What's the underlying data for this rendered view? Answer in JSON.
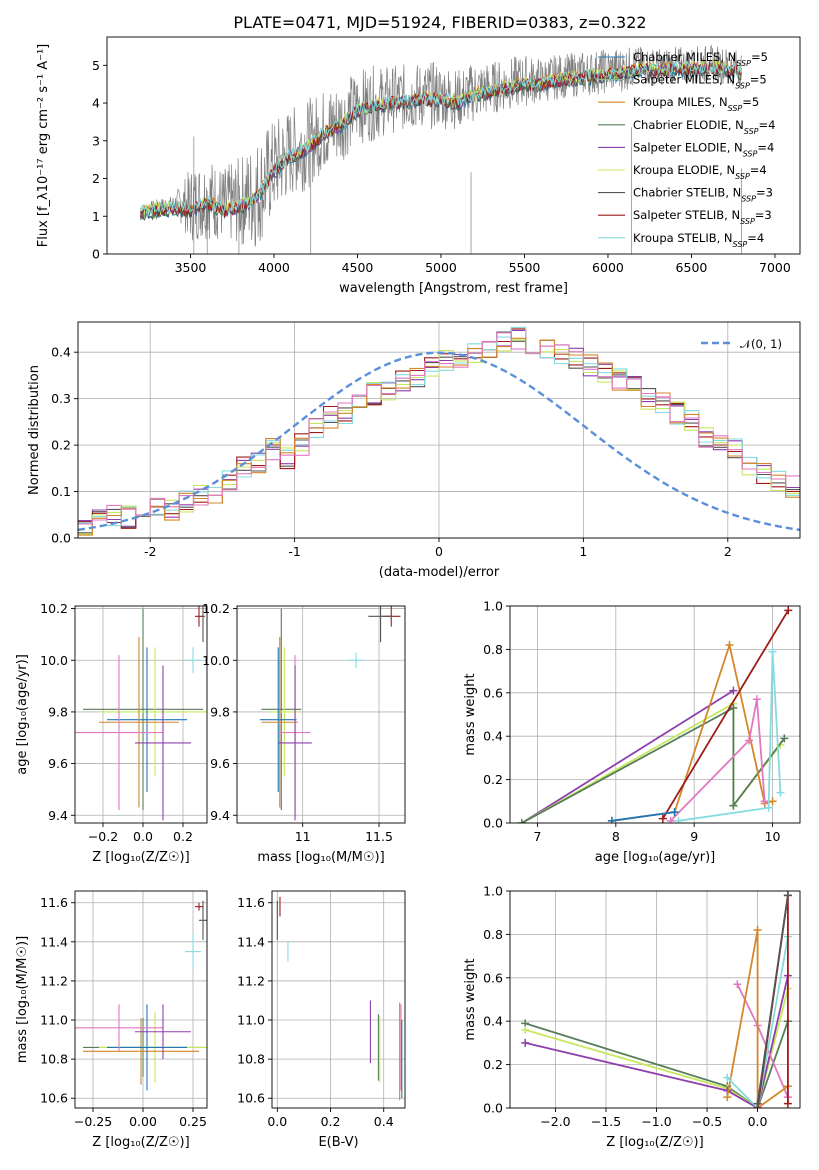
{
  "figure": {
    "title": "PLATE=0471, MJD=51924, FIBERID=0383, z=0.322",
    "colors": {
      "Chabrier MILES": "#1f77b4",
      "Salpeter MILES": "#8fbc8f",
      "Kroupa MILES": "#d4862a",
      "Chabrier ELODIE": "#567d58",
      "Salpeter ELODIE": "#8e3fae",
      "Kroupa ELODIE": "#c7e85e",
      "Chabrier STELIB": "#555555",
      "Salpeter STELIB": "#9e1b1b",
      "Kroupa STELIB": "#84dcdf",
      "pink": "#e377c2",
      "gauss": "#5b8fd9"
    }
  },
  "chart_data": [
    {
      "id": "spectrum",
      "type": "line",
      "xlabel": "wavelength [Angstrom, rest frame]",
      "ylabel": "Flux [f_λ10⁻¹⁷ erg cm⁻² s⁻¹ A⁻¹]",
      "xlim": [
        3000,
        7150
      ],
      "ylim": [
        0,
        5.75
      ],
      "xticks": [
        3500,
        4000,
        4500,
        5000,
        5500,
        6000,
        6500,
        7000
      ],
      "yticks": [
        0,
        1,
        2,
        3,
        4,
        5
      ],
      "grid": false,
      "legend_position": "right",
      "legend": [
        {
          "label": "Chabrier MILES, N_SSP=5",
          "prefix": "Chabrier MILES, N",
          "sub": "SSP",
          "suffix": "=5",
          "color": "#1f77b4"
        },
        {
          "label": "Salpeter MILES, N_SSP=5",
          "prefix": "Salpeter MILES, N",
          "sub": "SSP",
          "suffix": "=5",
          "color": "#8fbc8f"
        },
        {
          "label": "Kroupa MILES, N_SSP=5",
          "prefix": "Kroupa MILES, N",
          "sub": "SSP",
          "suffix": "=5",
          "color": "#d4862a"
        },
        {
          "label": "Chabrier ELODIE, N_SSP=4",
          "prefix": "Chabrier ELODIE, N",
          "sub": "SSP",
          "suffix": "=4",
          "color": "#567d58"
        },
        {
          "label": "Salpeter ELODIE, N_SSP=4",
          "prefix": "Salpeter ELODIE, N",
          "sub": "SSP",
          "suffix": "=4",
          "color": "#8e3fae"
        },
        {
          "label": "Kroupa ELODIE, N_SSP=4",
          "prefix": "Kroupa ELODIE, N",
          "sub": "SSP",
          "suffix": "=4",
          "color": "#c7e85e"
        },
        {
          "label": "Chabrier STELIB, N_SSP=3",
          "prefix": "Chabrier STELIB, N",
          "sub": "SSP",
          "suffix": "=3",
          "color": "#555555"
        },
        {
          "label": "Salpeter STELIB, N_SSP=3",
          "prefix": "Salpeter STELIB, N",
          "sub": "SSP",
          "suffix": "=3",
          "color": "#9e1b1b"
        },
        {
          "label": "Kroupa STELIB, N_SSP=4",
          "prefix": "Kroupa STELIB, N",
          "sub": "SSP",
          "suffix": "=4",
          "color": "#84dcdf"
        }
      ],
      "data_series": {
        "name": "data",
        "color": "#808080",
        "x": [
          3200,
          3300,
          3400,
          3500,
          3600,
          3700,
          3800,
          3900,
          4000,
          4100,
          4200,
          4300,
          4400,
          4500,
          4600,
          4700,
          4800,
          4900,
          5000,
          5100,
          5200,
          5300,
          5400,
          5500,
          5600,
          5700,
          5800,
          5900,
          6000,
          6100,
          6200,
          6300,
          6400,
          6500,
          6600,
          6700,
          6800
        ],
        "y": [
          1.2,
          1.3,
          1.35,
          1.3,
          1.5,
          1.3,
          1.4,
          1.6,
          2.3,
          2.7,
          2.9,
          3.3,
          3.5,
          3.9,
          4.0,
          4.1,
          4.15,
          4.2,
          4.2,
          4.1,
          4.3,
          4.4,
          4.5,
          4.6,
          4.6,
          4.7,
          4.75,
          4.8,
          4.85,
          4.9,
          5.0,
          4.95,
          5.0,
          5.0,
          5.05,
          5.0,
          4.9
        ],
        "noise": [
          0.1,
          0.15,
          0.2,
          1.0,
          1.1,
          1.0,
          1.2,
          1.5,
          1.3,
          1.2,
          1.2,
          1.1,
          1.1,
          1.0,
          1.0,
          0.9,
          0.9,
          0.9,
          0.9,
          0.8,
          0.8,
          0.7,
          0.7,
          0.7,
          0.6,
          0.6,
          0.6,
          0.6,
          0.6,
          0.6,
          0.5,
          0.5,
          0.5,
          0.5,
          0.5,
          0.5,
          0.5
        ]
      },
      "model_series": {
        "name": "models",
        "x": [
          3200,
          3300,
          3400,
          3500,
          3600,
          3700,
          3800,
          3900,
          4000,
          4100,
          4200,
          4300,
          4400,
          4500,
          4600,
          4700,
          4800,
          4900,
          5000,
          5100,
          5200,
          5300,
          5400,
          5500,
          5600,
          5700,
          5800,
          5900,
          6000,
          6100,
          6200,
          6300,
          6400,
          6500,
          6600,
          6700,
          6800
        ],
        "y": [
          1.1,
          1.15,
          1.2,
          1.15,
          1.35,
          1.15,
          1.25,
          1.5,
          2.2,
          2.6,
          2.8,
          3.2,
          3.4,
          3.8,
          3.9,
          4.0,
          4.05,
          4.1,
          4.1,
          4.0,
          4.2,
          4.3,
          4.4,
          4.5,
          4.5,
          4.6,
          4.65,
          4.7,
          4.75,
          4.8,
          4.9,
          4.85,
          4.9,
          4.9,
          4.95,
          4.9,
          4.8
        ]
      }
    },
    {
      "id": "residuals",
      "type": "histogram",
      "xlabel": "(data-model)/error",
      "ylabel": "Normed distribution",
      "xlim": [
        -2.5,
        2.5
      ],
      "ylim": [
        0,
        0.465
      ],
      "xticks": [
        -2,
        -1,
        0,
        1,
        2
      ],
      "yticks": [
        0.0,
        0.1,
        0.2,
        0.3,
        0.4
      ],
      "grid": true,
      "legend_position": "top-right",
      "legend": [
        {
          "label": "𝒩(0, 1)",
          "color": "#5b8fd9",
          "style": "dashed"
        }
      ],
      "bin_width": 0.1,
      "bin_start": -2.5,
      "envelope": [
        0.03,
        0.04,
        0.05,
        0.045,
        0.06,
        0.07,
        0.06,
        0.08,
        0.09,
        0.1,
        0.12,
        0.15,
        0.16,
        0.19,
        0.17,
        0.2,
        0.24,
        0.26,
        0.27,
        0.29,
        0.31,
        0.32,
        0.34,
        0.35,
        0.37,
        0.38,
        0.39,
        0.4,
        0.41,
        0.42,
        0.43,
        0.42,
        0.41,
        0.4,
        0.39,
        0.37,
        0.36,
        0.34,
        0.33,
        0.3,
        0.29,
        0.27,
        0.25,
        0.22,
        0.2,
        0.19,
        0.16,
        0.14,
        0.12,
        0.11,
        0.1,
        0.09,
        0.08,
        0.07,
        0.06,
        0.05,
        0.045,
        0.04,
        0.035,
        0.03
      ]
    },
    {
      "id": "age_vs_Z",
      "type": "errorbar",
      "xlabel": "Z [log₁₀(Z/Z☉)]",
      "ylabel": "age [log₁₀(age/yr)]",
      "xlim": [
        -0.34,
        0.32
      ],
      "ylim": [
        9.37,
        10.21
      ],
      "xticks": [
        -0.2,
        0.0,
        0.2
      ],
      "xticklabels": [
        "−0.2",
        "0.0",
        "0.2"
      ],
      "yticks": [
        9.4,
        9.6,
        9.8,
        10.0,
        10.2
      ],
      "grid": true,
      "points": [
        {
          "x": 0.0,
          "y": 9.81,
          "xerr": 0.3,
          "yerr": 0.39,
          "color": "#567d58"
        },
        {
          "x": 0.06,
          "y": 9.8,
          "xerr": 0.28,
          "yerr": 0.25,
          "color": "#c7e85e"
        },
        {
          "x": 0.02,
          "y": 9.77,
          "xerr": 0.2,
          "yerr": 0.28,
          "color": "#1f77b4"
        },
        {
          "x": -0.02,
          "y": 9.76,
          "xerr": 0.2,
          "yerr": 0.33,
          "color": "#d4862a"
        },
        {
          "x": -0.12,
          "y": 9.72,
          "xerr": 0.22,
          "yerr": 0.3,
          "color": "#e377c2"
        },
        {
          "x": 0.1,
          "y": 9.68,
          "xerr": 0.14,
          "yerr": 0.3,
          "color": "#8e3fae"
        },
        {
          "x": 0.25,
          "y": 10.0,
          "xerr": 0.04,
          "yerr": 0.05,
          "color": "#84dcdf"
        },
        {
          "x": 0.28,
          "y": 10.17,
          "xerr": 0.02,
          "yerr": 0.04,
          "color": "#9e1b1b"
        },
        {
          "x": 0.3,
          "y": 10.17,
          "xerr": 0.01,
          "yerr": 0.1,
          "color": "#555555"
        }
      ]
    },
    {
      "id": "age_vs_mass",
      "type": "errorbar",
      "xlabel": "mass [log₁₀(M/M☉)]",
      "ylabel": "",
      "xlim": [
        10.57,
        11.67
      ],
      "ylim": [
        9.37,
        10.21
      ],
      "xticks": [
        11.0,
        11.5
      ],
      "yticks": [
        9.4,
        9.6,
        9.8,
        10.0,
        10.2
      ],
      "grid": true,
      "points": [
        {
          "x": 10.86,
          "y": 9.81,
          "xerr": 0.13,
          "yerr": 0.39,
          "color": "#567d58"
        },
        {
          "x": 10.88,
          "y": 9.8,
          "xerr": 0.1,
          "yerr": 0.25,
          "color": "#c7e85e"
        },
        {
          "x": 10.84,
          "y": 9.77,
          "xerr": 0.12,
          "yerr": 0.28,
          "color": "#1f77b4"
        },
        {
          "x": 10.85,
          "y": 9.76,
          "xerr": 0.12,
          "yerr": 0.33,
          "color": "#d4862a"
        },
        {
          "x": 10.95,
          "y": 9.72,
          "xerr": 0.1,
          "yerr": 0.3,
          "color": "#e377c2"
        },
        {
          "x": 10.95,
          "y": 9.68,
          "xerr": 0.11,
          "yerr": 0.3,
          "color": "#8e3fae"
        },
        {
          "x": 11.35,
          "y": 10.0,
          "xerr": 0.05,
          "yerr": 0.03,
          "color": "#84dcdf"
        },
        {
          "x": 11.58,
          "y": 10.17,
          "xerr": 0.06,
          "yerr": 0.04,
          "color": "#9e1b1b"
        },
        {
          "x": 11.51,
          "y": 10.17,
          "xerr": 0.08,
          "yerr": 0.1,
          "color": "#555555"
        }
      ]
    },
    {
      "id": "massweight_vs_age",
      "type": "line",
      "xlabel": "age [log₁₀(age/yr)]",
      "ylabel": "mass weight",
      "xlim": [
        6.65,
        10.35
      ],
      "ylim": [
        0,
        1.0
      ],
      "xticks": [
        7,
        8,
        9,
        10
      ],
      "yticks": [
        0.0,
        0.2,
        0.4,
        0.6,
        0.8,
        1.0
      ],
      "grid": true,
      "series": [
        {
          "color": "#8e3fae",
          "x": [
            6.8,
            9.5
          ],
          "y": [
            0.0,
            0.61
          ]
        },
        {
          "color": "#c7e85e",
          "x": [
            6.8,
            9.5,
            9.5,
            10.1
          ],
          "y": [
            0.0,
            0.55,
            0.08,
            0.36
          ]
        },
        {
          "color": "#567d58",
          "x": [
            6.8,
            9.5,
            9.5,
            10.15
          ],
          "y": [
            0.0,
            0.53,
            0.08,
            0.39
          ]
        },
        {
          "color": "#d4862a",
          "x": [
            7.95,
            8.75,
            9.45,
            9.9,
            10.0
          ],
          "y": [
            0.01,
            0.05,
            0.82,
            0.09,
            0.1
          ]
        },
        {
          "color": "#e377c2",
          "x": [
            8.7,
            9.7,
            9.8,
            9.9
          ],
          "y": [
            0.01,
            0.38,
            0.57,
            0.1
          ]
        },
        {
          "color": "#9e1b1b",
          "x": [
            8.6,
            10.2
          ],
          "y": [
            0.02,
            0.98
          ]
        },
        {
          "color": "#84dcdf",
          "x": [
            8.8,
            9.95,
            10.0,
            10.1
          ],
          "y": [
            0.01,
            0.07,
            0.79,
            0.14
          ]
        },
        {
          "color": "#1f77b4",
          "x": [
            7.95,
            8.75
          ],
          "y": [
            0.01,
            0.05
          ]
        }
      ]
    },
    {
      "id": "mass_vs_Z",
      "type": "errorbar",
      "xlabel": "Z [log₁₀(Z/Z☉)]",
      "ylabel": "mass [log₁₀(M/M☉)]",
      "xlim": [
        -0.34,
        0.32
      ],
      "ylim": [
        10.55,
        11.66
      ],
      "xticks": [
        -0.25,
        0.0,
        0.25
      ],
      "xticklabels": [
        "−0.25",
        "0.00",
        "0.25"
      ],
      "yticks": [
        10.6,
        10.8,
        11.0,
        11.2,
        11.4,
        11.6
      ],
      "grid": true,
      "points": [
        {
          "x": 0.0,
          "y": 10.86,
          "xerr": 0.3,
          "yerr": 0.15,
          "color": "#567d58"
        },
        {
          "x": 0.06,
          "y": 10.86,
          "xerr": 0.28,
          "yerr": 0.18,
          "color": "#c7e85e"
        },
        {
          "x": -0.01,
          "y": 10.84,
          "xerr": 0.29,
          "yerr": 0.17,
          "color": "#d4862a"
        },
        {
          "x": 0.02,
          "y": 10.86,
          "xerr": 0.2,
          "yerr": 0.22,
          "color": "#1f77b4"
        },
        {
          "x": -0.12,
          "y": 10.96,
          "xerr": 0.22,
          "yerr": 0.12,
          "color": "#e377c2"
        },
        {
          "x": 0.1,
          "y": 10.94,
          "xerr": 0.14,
          "yerr": 0.14,
          "color": "#8e3fae"
        },
        {
          "x": 0.25,
          "y": 11.35,
          "xerr": 0.04,
          "yerr": 0.09,
          "color": "#84dcdf"
        },
        {
          "x": 0.28,
          "y": 11.58,
          "xerr": 0.02,
          "yerr": 0.02,
          "color": "#9e1b1b"
        },
        {
          "x": 0.3,
          "y": 11.51,
          "xerr": 0.02,
          "yerr": 0.1,
          "color": "#555555"
        }
      ]
    },
    {
      "id": "mass_vs_EBV",
      "type": "errorbar",
      "xlabel": "E(B-V)",
      "ylabel": "",
      "xlim": [
        -0.02,
        0.48
      ],
      "ylim": [
        10.55,
        11.66
      ],
      "xticks": [
        0.0,
        0.2,
        0.4
      ],
      "xticklabels": [
        "0.0",
        "0.2",
        "0.4"
      ],
      "yticks": [
        10.6,
        10.8,
        11.0,
        11.2,
        11.4,
        11.6
      ],
      "grid": true,
      "points": [
        {
          "x": 0.0,
          "y": 11.51,
          "xerr": 0.0,
          "yerr": 0.1,
          "color": "#555555"
        },
        {
          "x": 0.01,
          "y": 11.58,
          "xerr": 0.0,
          "yerr": 0.05,
          "color": "#9e1b1b"
        },
        {
          "x": 0.04,
          "y": 11.35,
          "xerr": 0.0,
          "yerr": 0.05,
          "color": "#84dcdf"
        },
        {
          "x": 0.35,
          "y": 10.94,
          "xerr": 0.0,
          "yerr": 0.16,
          "color": "#8e3fae"
        },
        {
          "x": 0.38,
          "y": 10.86,
          "xerr": 0.0,
          "yerr": 0.17,
          "color": "#567d58"
        },
        {
          "x": 0.385,
          "y": 10.85,
          "xerr": 0.0,
          "yerr": 0.17,
          "color": "#c7e85e"
        },
        {
          "x": 0.46,
          "y": 10.84,
          "xerr": 0.0,
          "yerr": 0.25,
          "color": "#d4862a"
        },
        {
          "x": 0.465,
          "y": 10.86,
          "xerr": 0.0,
          "yerr": 0.22,
          "color": "#e377c2"
        },
        {
          "x": 0.468,
          "y": 10.8,
          "xerr": 0.0,
          "yerr": 0.2,
          "color": "#1f77b4"
        }
      ]
    },
    {
      "id": "massweight_vs_Z",
      "type": "line",
      "xlabel": "Z [log₁₀(Z/Z☉)]",
      "ylabel": "mass weight",
      "xlim": [
        -2.45,
        0.42
      ],
      "ylim": [
        0,
        1.0
      ],
      "xticks": [
        -2.0,
        -1.5,
        -1.0,
        -0.5,
        0.0
      ],
      "xticklabels": [
        "−2.0",
        "−1.5",
        "−1.0",
        "−0.5",
        "0.0"
      ],
      "yticks": [
        0.0,
        0.2,
        0.4,
        0.6,
        0.8,
        1.0
      ],
      "grid": true,
      "series": [
        {
          "color": "#567d58",
          "x": [
            -2.3,
            -0.3,
            0.0,
            0.3
          ],
          "y": [
            0.39,
            0.1,
            0.0,
            0.4
          ]
        },
        {
          "color": "#c7e85e",
          "x": [
            -2.3,
            -0.3,
            0.0,
            0.3
          ],
          "y": [
            0.36,
            0.09,
            0.0,
            0.55
          ]
        },
        {
          "color": "#8e3fae",
          "x": [
            -2.3,
            -0.3,
            0.0,
            0.3
          ],
          "y": [
            0.3,
            0.08,
            0.0,
            0.61
          ]
        },
        {
          "color": "#e377c2",
          "x": [
            -0.2,
            0.0,
            0.3
          ],
          "y": [
            0.57,
            0.38,
            0.05
          ]
        },
        {
          "color": "#d4862a",
          "x": [
            -0.3,
            0.0,
            0.0,
            0.3
          ],
          "y": [
            0.05,
            0.82,
            0.0,
            0.1
          ]
        },
        {
          "color": "#84dcdf",
          "x": [
            -0.3,
            0.0,
            0.3
          ],
          "y": [
            0.14,
            0.0,
            0.79
          ]
        },
        {
          "color": "#9e1b1b",
          "x": [
            0.0,
            0.3,
            0.3
          ],
          "y": [
            0.0,
            0.98,
            0.02
          ]
        },
        {
          "color": "#555555",
          "x": [
            0.0,
            0.3
          ],
          "y": [
            0.02,
            0.98
          ]
        }
      ]
    }
  ]
}
